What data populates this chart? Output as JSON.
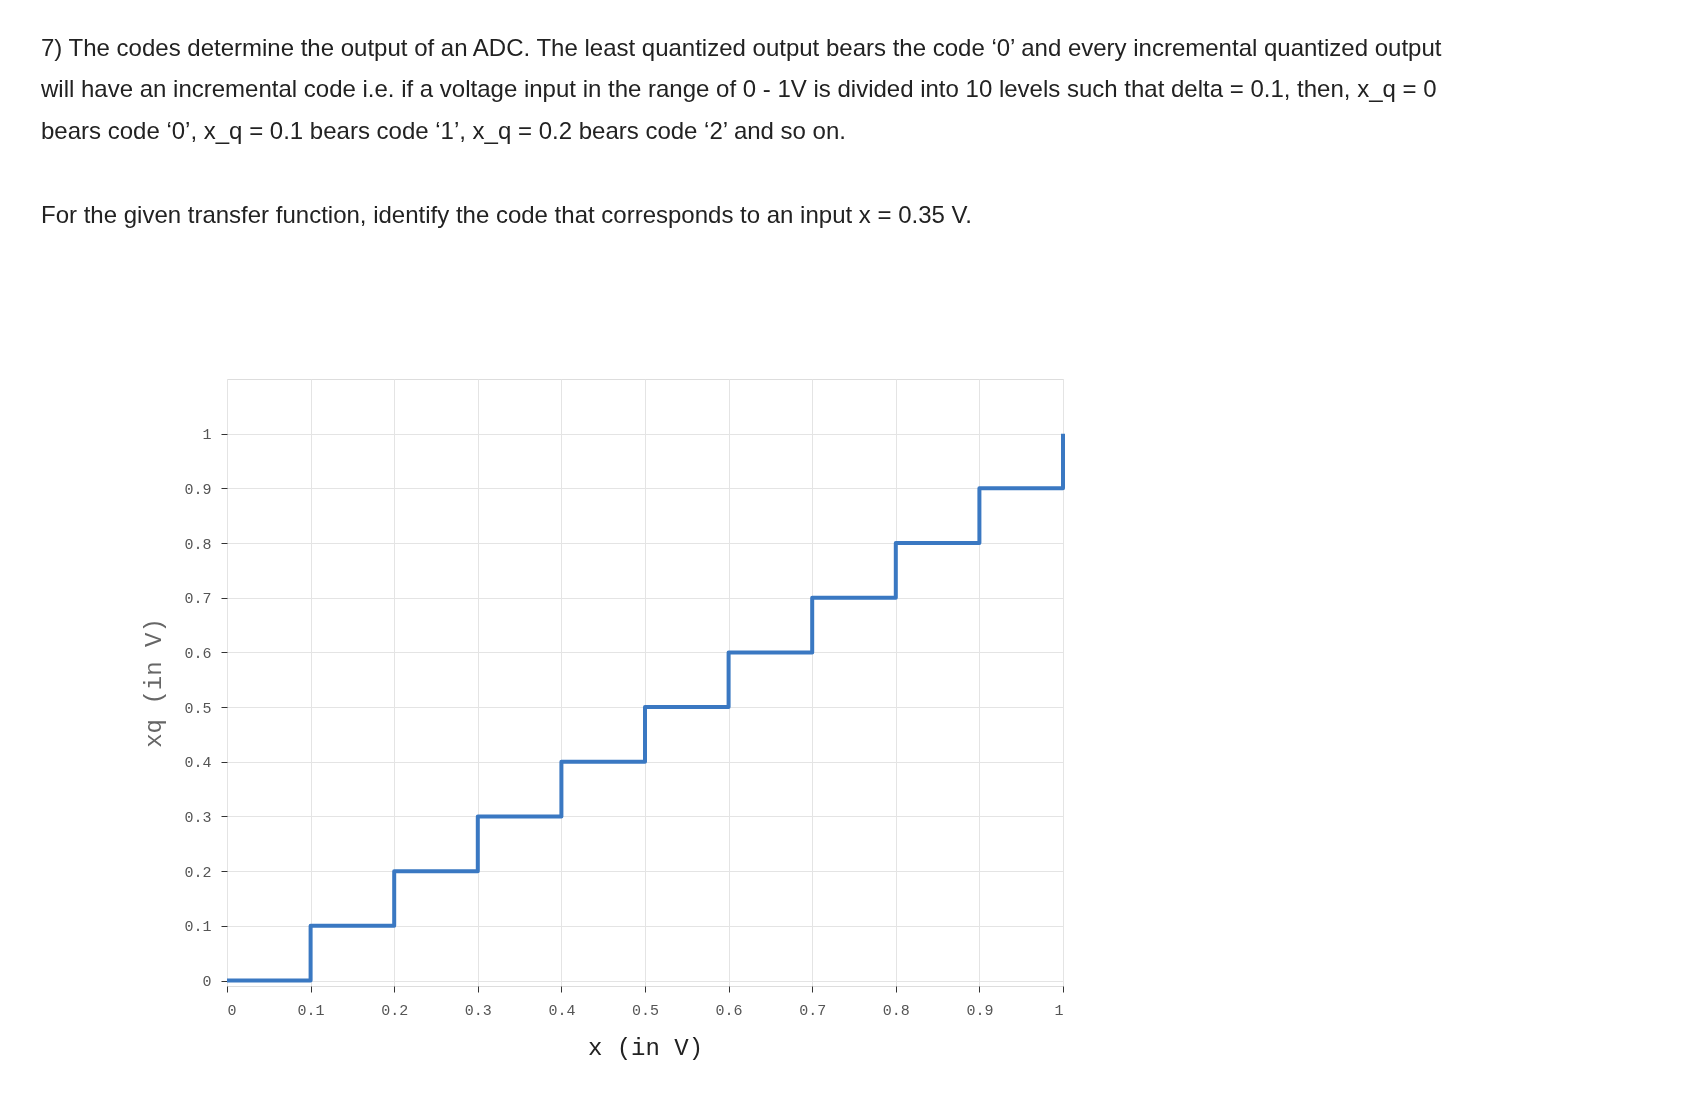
{
  "chart_data": {
    "type": "step",
    "annotations": [
      "7) The codes determine the output of an ADC. The least quantized output bears the code ‘0’ and every incremental quantized output",
      "will have an incremental code i.e. if a voltage input in the range of 0 - 1V is divided into 10 levels such that delta = 0.1, then, x_q = 0",
      "bears code ‘0’, x_q = 0.1 bears code ‘1’, x_q = 0.2 bears code ‘2’ and so on.",
      "For the given transfer function, identify the code that corresponds to an input x = 0.35 V."
    ],
    "xlabel": "x (in V)",
    "ylabel": "xq (in V)",
    "x": [
      0,
      0.1,
      0.2,
      0.3,
      0.4,
      0.5,
      0.6,
      0.7,
      0.8,
      0.9,
      1
    ],
    "series": [
      {
        "color": "#3a78c2",
        "values": [
          0,
          0.1,
          0.2,
          0.3,
          0.4,
          0.5,
          0.6,
          0.7,
          0.8,
          0.9,
          1
        ]
      }
    ],
    "xlim": [
      0,
      1
    ],
    "ylim": [
      -0.01,
      1.1
    ],
    "xticks": [
      0,
      0.1,
      0.2,
      0.3,
      0.4,
      0.5,
      0.6,
      0.7,
      0.8,
      0.9,
      1
    ],
    "yticks": [
      0,
      0.1,
      0.2,
      0.3,
      0.4,
      0.5,
      0.6,
      0.7,
      0.8,
      0.9,
      1
    ],
    "grid": true
  }
}
